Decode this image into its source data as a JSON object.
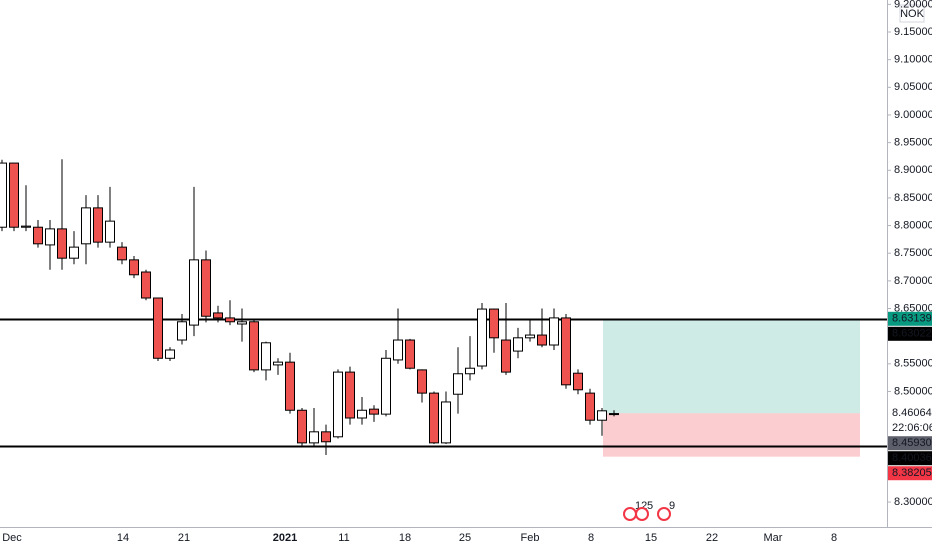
{
  "chart_data": {
    "type": "candlestick",
    "currency": "NOK",
    "up_color": "#ffffff",
    "down_color": "#ef5350",
    "candles": {
      "open": [
        8.797,
        8.913,
        8.797,
        8.797,
        8.765,
        8.794,
        8.741,
        8.767,
        8.832,
        8.77,
        8.761,
        8.738,
        8.716,
        8.669,
        8.56,
        8.593,
        8.62,
        8.738,
        8.642,
        8.633,
        8.622,
        8.626,
        8.539,
        8.548,
        8.553,
        8.466,
        8.407,
        8.427,
        8.418,
        8.535,
        8.452,
        8.468,
        8.459,
        8.557,
        8.593,
        8.539,
        8.497,
        8.407,
        8.495,
        8.532,
        8.546,
        8.649,
        8.593,
        8.573,
        8.597,
        8.602,
        8.584,
        8.633,
        8.533,
        8.497,
        8.448,
        8.459
      ],
      "high": [
        8.919,
        8.913,
        8.873,
        8.81,
        8.81,
        8.92,
        8.79,
        8.855,
        8.855,
        8.87,
        8.77,
        8.745,
        8.72,
        8.67,
        8.58,
        8.64,
        8.87,
        8.755,
        8.655,
        8.665,
        8.65,
        8.63,
        8.59,
        8.56,
        8.57,
        8.47,
        8.47,
        8.44,
        8.54,
        8.545,
        8.49,
        8.475,
        8.575,
        8.65,
        8.595,
        8.54,
        8.5,
        8.5,
        8.58,
        8.6,
        8.66,
        8.65,
        8.66,
        8.615,
        8.63,
        8.65,
        8.65,
        8.64,
        8.54,
        8.505,
        8.47,
        8.466
      ],
      "low": [
        8.79,
        8.79,
        8.79,
        8.76,
        8.72,
        8.72,
        8.73,
        8.73,
        8.76,
        8.76,
        8.73,
        8.705,
        8.665,
        8.555,
        8.555,
        8.585,
        8.6,
        8.625,
        8.625,
        8.62,
        8.59,
        8.535,
        8.52,
        8.53,
        8.46,
        8.4,
        8.4,
        8.385,
        8.415,
        8.44,
        8.44,
        8.445,
        8.455,
        8.55,
        8.54,
        8.48,
        8.405,
        8.405,
        8.46,
        8.52,
        8.54,
        8.57,
        8.53,
        8.56,
        8.59,
        8.58,
        8.575,
        8.505,
        8.495,
        8.44,
        8.42,
        8.455
      ],
      "close": [
        8.913,
        8.797,
        8.799,
        8.767,
        8.794,
        8.741,
        8.761,
        8.832,
        8.77,
        8.808,
        8.738,
        8.711,
        8.669,
        8.56,
        8.575,
        8.626,
        8.738,
        8.636,
        8.633,
        8.626,
        8.626,
        8.539,
        8.588,
        8.553,
        8.466,
        8.407,
        8.427,
        8.409,
        8.535,
        8.452,
        8.466,
        8.459,
        8.56,
        8.593,
        8.542,
        8.497,
        8.407,
        8.481,
        8.532,
        8.542,
        8.649,
        8.597,
        8.535,
        8.597,
        8.602,
        8.584,
        8.633,
        8.512,
        8.503,
        8.448,
        8.465,
        8.46
      ]
    },
    "ylim": [
      8.2585,
      9.2079
    ],
    "yticks": [
      {
        "value": 9.2,
        "label": "9.20000"
      },
      {
        "value": 9.15,
        "label": "9.15000"
      },
      {
        "value": 9.1,
        "label": "9.10000"
      },
      {
        "value": 9.05,
        "label": "9.05000"
      },
      {
        "value": 9.0,
        "label": "9.00000"
      },
      {
        "value": 8.95,
        "label": "8.95000"
      },
      {
        "value": 8.9,
        "label": "8.90000"
      },
      {
        "value": 8.85,
        "label": "8.85000"
      },
      {
        "value": 8.8,
        "label": "8.80000"
      },
      {
        "value": 8.75,
        "label": "8.75000"
      },
      {
        "value": 8.7,
        "label": "8.70000"
      },
      {
        "value": 8.65,
        "label": "8.65000"
      },
      {
        "value": 8.55,
        "label": "8.55000"
      },
      {
        "value": 8.5,
        "label": "8.50000"
      },
      {
        "value": 8.3,
        "label": "8.30000"
      }
    ],
    "x_labels": [
      "Dec",
      "14",
      "21",
      "2021",
      "11",
      "18",
      "25",
      "Feb",
      "8",
      "15",
      "22",
      "Mar",
      "8"
    ],
    "levels": [
      8.63022,
      8.40036
    ],
    "position": {
      "target": 8.63139,
      "entry": 8.46064,
      "stop": 8.38205
    },
    "price_labels": [
      {
        "value": 8.63139,
        "label": "8.63139",
        "color": "#089981"
      },
      {
        "value": 8.63022,
        "label": "8.63022",
        "color": "#000000"
      },
      {
        "value": 8.46064,
        "label": "8.46064",
        "color": null
      },
      {
        "value": 8.4593,
        "label": "8.45930",
        "color": "#5d606b"
      },
      {
        "value": 8.40036,
        "label": "8.40036",
        "color": "#000000"
      },
      {
        "value": 8.38205,
        "label": "8.38205",
        "color": "#f23645"
      }
    ],
    "countdown": "22:06:06",
    "events": [
      "12",
      "5",
      "9"
    ]
  }
}
